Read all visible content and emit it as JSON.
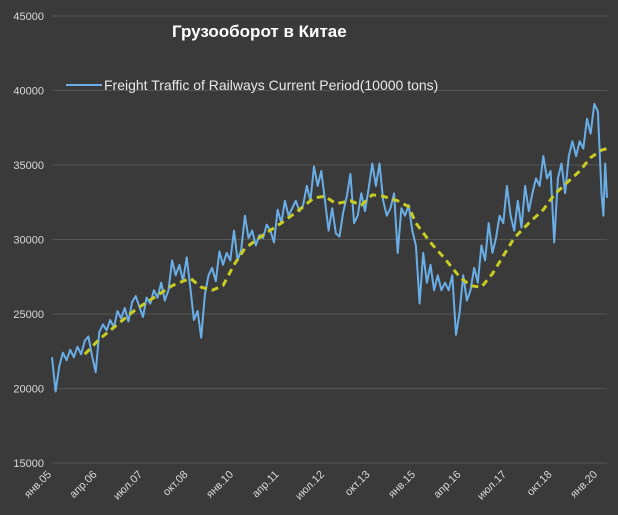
{
  "chart_data": {
    "type": "line",
    "title": "Грузооборот в Китае",
    "legend_position": "top-left",
    "ylim": [
      15000,
      45000
    ],
    "yticks": [
      15000,
      20000,
      25000,
      30000,
      35000,
      40000,
      45000
    ],
    "xlim": [
      2005.0,
      2020.25
    ],
    "xtick_labels": [
      {
        "label": "янв.05",
        "x": 2005.0
      },
      {
        "label": "апр.06",
        "x": 2006.25
      },
      {
        "label": "июл.07",
        "x": 2007.5
      },
      {
        "label": "окт.08",
        "x": 2008.75
      },
      {
        "label": "янв.10",
        "x": 2010.0
      },
      {
        "label": "апр.11",
        "x": 2011.25
      },
      {
        "label": "июл.12",
        "x": 2012.5
      },
      {
        "label": "окт.13",
        "x": 2013.75
      },
      {
        "label": "янв.15",
        "x": 2015.0
      },
      {
        "label": "апр.16",
        "x": 2016.25
      },
      {
        "label": "июл.17",
        "x": 2017.5
      },
      {
        "label": "окт.18",
        "x": 2018.75
      },
      {
        "label": "янв.20",
        "x": 2020.0
      }
    ],
    "series": [
      {
        "name": "Freight Traffic of Railways Current Period(10000 tons)",
        "color": "#6aaee8",
        "style": "solid",
        "points": [
          [
            2005.0,
            22100
          ],
          [
            2005.1,
            19800
          ],
          [
            2005.2,
            21500
          ],
          [
            2005.3,
            22400
          ],
          [
            2005.4,
            21900
          ],
          [
            2005.5,
            22600
          ],
          [
            2005.6,
            22100
          ],
          [
            2005.7,
            22800
          ],
          [
            2005.8,
            22300
          ],
          [
            2005.9,
            23200
          ],
          [
            2006.0,
            23500
          ],
          [
            2006.1,
            22200
          ],
          [
            2006.2,
            21100
          ],
          [
            2006.3,
            23800
          ],
          [
            2006.4,
            24300
          ],
          [
            2006.5,
            23900
          ],
          [
            2006.6,
            24600
          ],
          [
            2006.7,
            24100
          ],
          [
            2006.8,
            25200
          ],
          [
            2006.9,
            24700
          ],
          [
            2007.0,
            25400
          ],
          [
            2007.1,
            24500
          ],
          [
            2007.2,
            25800
          ],
          [
            2007.3,
            26200
          ],
          [
            2007.4,
            25500
          ],
          [
            2007.5,
            24800
          ],
          [
            2007.6,
            26100
          ],
          [
            2007.7,
            25700
          ],
          [
            2007.8,
            26600
          ],
          [
            2007.9,
            26100
          ],
          [
            2008.0,
            27100
          ],
          [
            2008.1,
            25900
          ],
          [
            2008.2,
            26600
          ],
          [
            2008.3,
            28600
          ],
          [
            2008.4,
            27600
          ],
          [
            2008.5,
            28300
          ],
          [
            2008.6,
            27200
          ],
          [
            2008.7,
            28800
          ],
          [
            2008.8,
            26800
          ],
          [
            2008.9,
            24600
          ],
          [
            2009.0,
            25200
          ],
          [
            2009.1,
            23400
          ],
          [
            2009.2,
            26300
          ],
          [
            2009.3,
            27600
          ],
          [
            2009.4,
            28100
          ],
          [
            2009.5,
            27200
          ],
          [
            2009.6,
            29200
          ],
          [
            2009.7,
            28300
          ],
          [
            2009.8,
            29100
          ],
          [
            2009.9,
            28600
          ],
          [
            2010.0,
            30600
          ],
          [
            2010.1,
            28600
          ],
          [
            2010.2,
            29300
          ],
          [
            2010.3,
            31600
          ],
          [
            2010.4,
            30100
          ],
          [
            2010.5,
            30600
          ],
          [
            2010.6,
            29600
          ],
          [
            2010.7,
            30300
          ],
          [
            2010.8,
            30100
          ],
          [
            2010.9,
            31000
          ],
          [
            2011.0,
            30600
          ],
          [
            2011.1,
            29800
          ],
          [
            2011.2,
            32000
          ],
          [
            2011.3,
            31100
          ],
          [
            2011.4,
            32600
          ],
          [
            2011.5,
            31600
          ],
          [
            2011.6,
            32100
          ],
          [
            2011.7,
            32600
          ],
          [
            2011.8,
            31900
          ],
          [
            2011.9,
            32300
          ],
          [
            2012.0,
            33600
          ],
          [
            2012.1,
            32600
          ],
          [
            2012.2,
            34900
          ],
          [
            2012.3,
            33600
          ],
          [
            2012.4,
            34600
          ],
          [
            2012.5,
            32600
          ],
          [
            2012.6,
            30600
          ],
          [
            2012.7,
            32100
          ],
          [
            2012.8,
            30400
          ],
          [
            2012.9,
            30200
          ],
          [
            2013.0,
            31800
          ],
          [
            2013.1,
            32900
          ],
          [
            2013.2,
            34400
          ],
          [
            2013.3,
            31100
          ],
          [
            2013.4,
            31600
          ],
          [
            2013.5,
            33100
          ],
          [
            2013.6,
            31900
          ],
          [
            2013.7,
            33400
          ],
          [
            2013.8,
            35100
          ],
          [
            2013.9,
            33600
          ],
          [
            2014.0,
            35100
          ],
          [
            2014.1,
            32600
          ],
          [
            2014.2,
            31600
          ],
          [
            2014.3,
            32100
          ],
          [
            2014.4,
            33100
          ],
          [
            2014.5,
            29100
          ],
          [
            2014.6,
            32100
          ],
          [
            2014.7,
            31600
          ],
          [
            2014.8,
            32300
          ],
          [
            2014.9,
            30600
          ],
          [
            2015.0,
            29600
          ],
          [
            2015.1,
            25700
          ],
          [
            2015.2,
            29100
          ],
          [
            2015.3,
            27100
          ],
          [
            2015.4,
            28300
          ],
          [
            2015.5,
            26600
          ],
          [
            2015.6,
            27600
          ],
          [
            2015.7,
            26600
          ],
          [
            2015.8,
            27100
          ],
          [
            2015.9,
            26600
          ],
          [
            2016.0,
            27600
          ],
          [
            2016.1,
            23600
          ],
          [
            2016.2,
            25100
          ],
          [
            2016.3,
            27600
          ],
          [
            2016.4,
            25900
          ],
          [
            2016.5,
            26600
          ],
          [
            2016.6,
            28100
          ],
          [
            2016.7,
            27100
          ],
          [
            2016.8,
            29600
          ],
          [
            2016.9,
            28600
          ],
          [
            2017.0,
            31100
          ],
          [
            2017.1,
            29100
          ],
          [
            2017.2,
            30100
          ],
          [
            2017.3,
            31600
          ],
          [
            2017.4,
            31100
          ],
          [
            2017.5,
            33600
          ],
          [
            2017.6,
            31600
          ],
          [
            2017.7,
            30600
          ],
          [
            2017.8,
            32600
          ],
          [
            2017.9,
            30800
          ],
          [
            2018.0,
            33600
          ],
          [
            2018.1,
            31900
          ],
          [
            2018.2,
            33100
          ],
          [
            2018.3,
            34100
          ],
          [
            2018.4,
            33600
          ],
          [
            2018.5,
            35600
          ],
          [
            2018.6,
            34100
          ],
          [
            2018.7,
            34600
          ],
          [
            2018.8,
            29800
          ],
          [
            2018.9,
            34100
          ],
          [
            2019.0,
            35100
          ],
          [
            2019.1,
            33100
          ],
          [
            2019.2,
            35600
          ],
          [
            2019.3,
            36600
          ],
          [
            2019.4,
            35600
          ],
          [
            2019.5,
            36600
          ],
          [
            2019.6,
            36100
          ],
          [
            2019.7,
            38100
          ],
          [
            2019.8,
            37100
          ],
          [
            2019.9,
            39100
          ],
          [
            2020.0,
            38600
          ],
          [
            2020.1,
            33100
          ],
          [
            2020.15,
            31600
          ],
          [
            2020.2,
            35100
          ],
          [
            2020.25,
            32800
          ]
        ]
      },
      {
        "color": "#c8cc22",
        "style": "dashed",
        "points": [
          [
            2005.9,
            22300
          ],
          [
            2006.3,
            23300
          ],
          [
            2006.8,
            24300
          ],
          [
            2007.3,
            25300
          ],
          [
            2007.8,
            26100
          ],
          [
            2008.3,
            26900
          ],
          [
            2008.8,
            27400
          ],
          [
            2009.1,
            26800
          ],
          [
            2009.4,
            26600
          ],
          [
            2009.7,
            26900
          ],
          [
            2010.0,
            28300
          ],
          [
            2010.3,
            29400
          ],
          [
            2010.8,
            30300
          ],
          [
            2011.3,
            31100
          ],
          [
            2011.8,
            32000
          ],
          [
            2012.2,
            32800
          ],
          [
            2012.5,
            32900
          ],
          [
            2012.8,
            32400
          ],
          [
            2013.2,
            32600
          ],
          [
            2013.5,
            32300
          ],
          [
            2013.8,
            33000
          ],
          [
            2014.1,
            32900
          ],
          [
            2014.5,
            32600
          ],
          [
            2014.8,
            32200
          ],
          [
            2015.0,
            31100
          ],
          [
            2015.4,
            29800
          ],
          [
            2015.8,
            28700
          ],
          [
            2016.2,
            27500
          ],
          [
            2016.5,
            26900
          ],
          [
            2016.8,
            26800
          ],
          [
            2017.1,
            27700
          ],
          [
            2017.4,
            28900
          ],
          [
            2017.7,
            30100
          ],
          [
            2018.1,
            31100
          ],
          [
            2018.5,
            32000
          ],
          [
            2018.8,
            33000
          ],
          [
            2019.1,
            33700
          ],
          [
            2019.5,
            34600
          ],
          [
            2019.8,
            35500
          ],
          [
            2020.1,
            36000
          ],
          [
            2020.25,
            36100
          ]
        ]
      }
    ]
  }
}
